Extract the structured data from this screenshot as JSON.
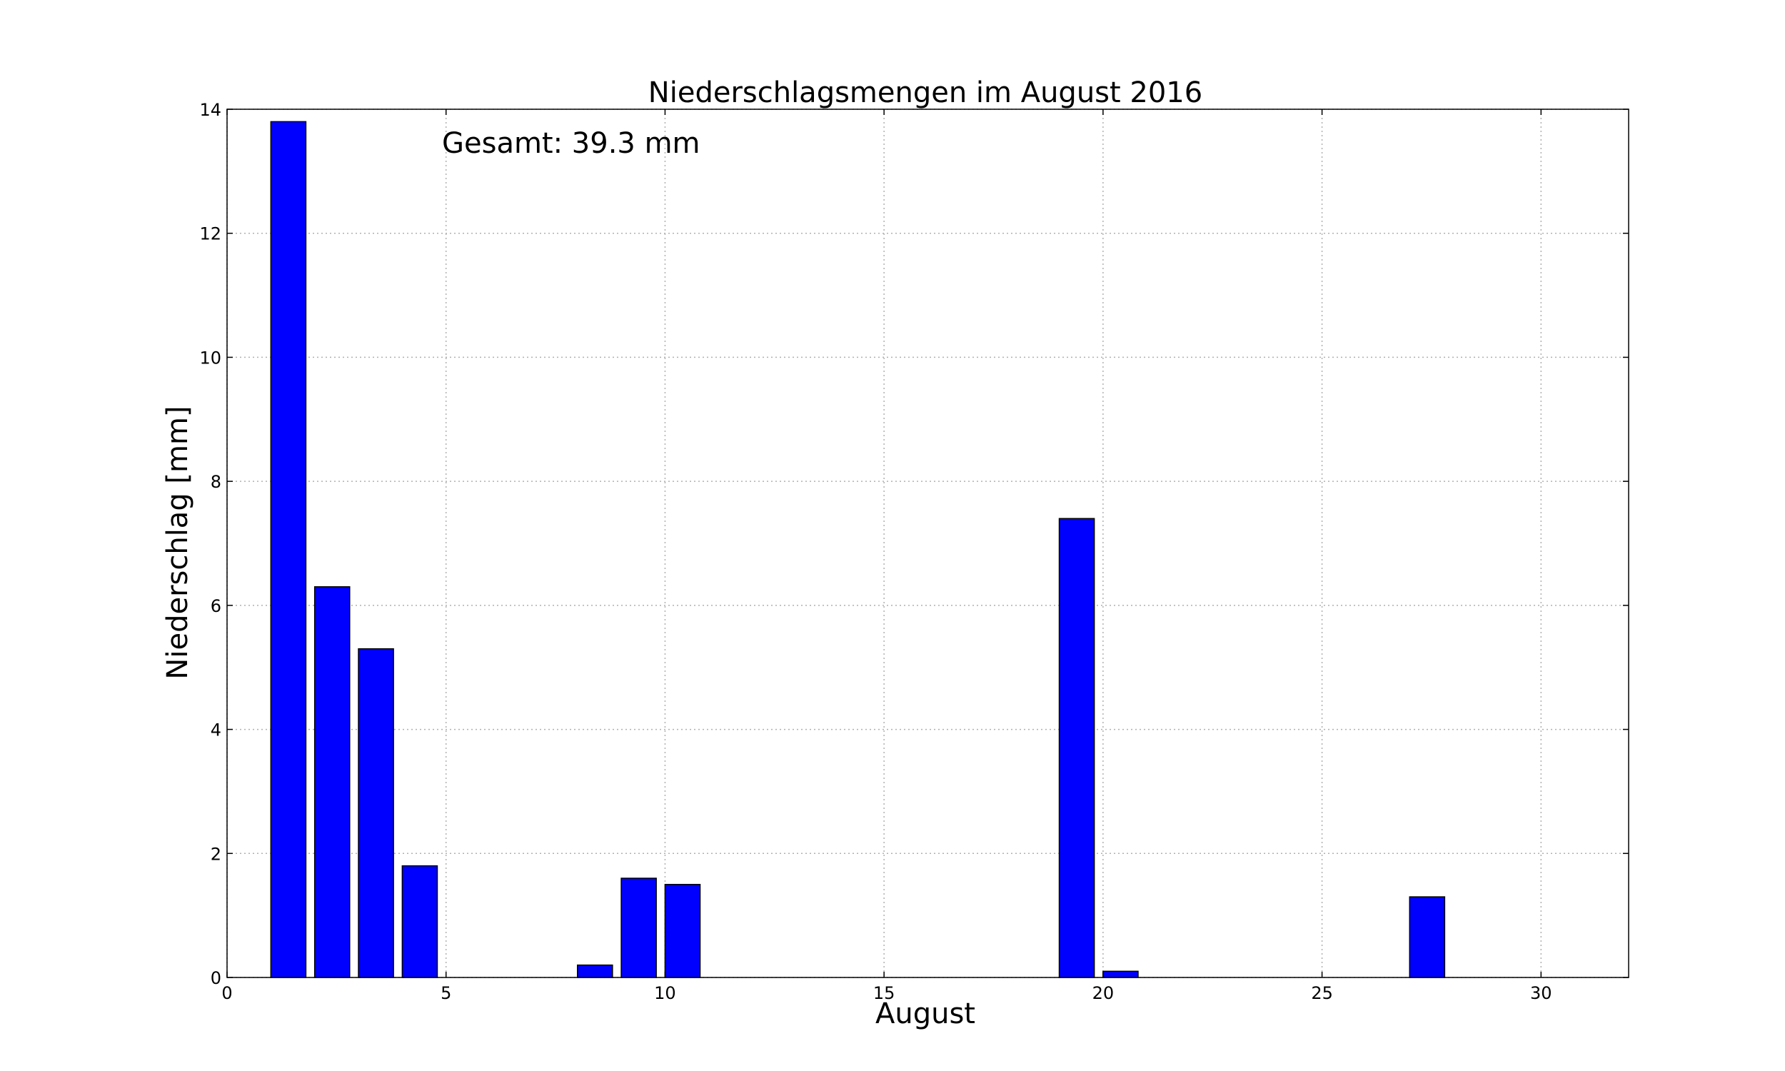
{
  "chart_data": {
    "type": "bar",
    "title": "Niederschlagsmengen im August 2016",
    "xlabel": "August",
    "ylabel": "Niederschlag [mm]",
    "annotation": "Gesamt: 39.3 mm",
    "xlim": [
      0,
      32
    ],
    "ylim": [
      0,
      14
    ],
    "grid": true,
    "bar_color": "#0000ff",
    "xticks": [
      0,
      5,
      10,
      15,
      20,
      25,
      30
    ],
    "yticks": [
      0,
      2,
      4,
      6,
      8,
      10,
      12,
      14
    ],
    "bar_width": 0.8,
    "x": [
      1,
      2,
      3,
      4,
      5,
      6,
      7,
      8,
      9,
      10,
      11,
      12,
      13,
      14,
      15,
      16,
      17,
      18,
      19,
      20,
      21,
      22,
      23,
      24,
      25,
      26,
      27,
      28,
      29,
      30,
      31
    ],
    "values": [
      13.8,
      6.3,
      5.3,
      1.8,
      0,
      0,
      0,
      0.2,
      1.6,
      1.5,
      0,
      0,
      0,
      0,
      0,
      0,
      0,
      0,
      7.4,
      0.1,
      0,
      0,
      0,
      0,
      0,
      0,
      1.3,
      0,
      0,
      0,
      0
    ]
  }
}
